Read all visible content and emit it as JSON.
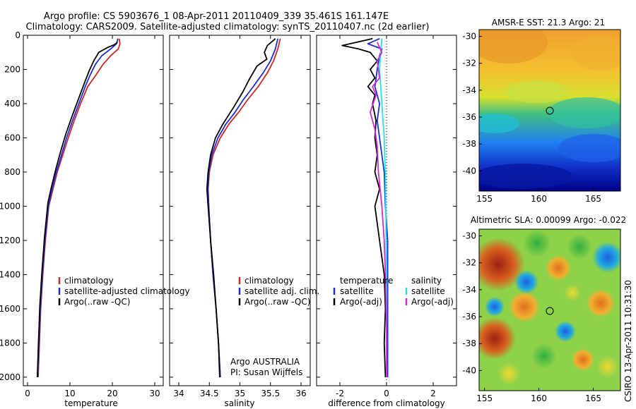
{
  "header": {
    "line1": "Argo profile: CS 5903676_1 08-Apr-2011 20110409_339 35.461S 161.147E",
    "line2": "Climatology: CARS2009. Satellite-adjusted climatology: synTS_20110407.nc (2d earlier)"
  },
  "colors": {
    "climatology": "#dd2222",
    "satellite": "#1a2ee0",
    "argo": "#000000",
    "sat_diff": "#22e6e6",
    "argo_adj": "#dd22dd"
  },
  "credit": "CSIRO 13-Apr-2011 10:31:30",
  "chart_data": [
    {
      "type": "line",
      "xlabel": "temperature",
      "xlim": [
        -1,
        32
      ],
      "ylim": [
        2050,
        0
      ],
      "xticks": [
        0,
        10,
        20,
        30
      ],
      "yticks": [
        0,
        200,
        400,
        600,
        800,
        1000,
        1200,
        1400,
        1600,
        1800,
        2000
      ],
      "legend": [
        "climatology",
        "satellite-adjusted climatology",
        "Argo(..raw -QC)"
      ],
      "series": [
        {
          "name": "climatology",
          "color": "#dd2222",
          "x": [
            21.6,
            21.8,
            21.4,
            19.6,
            17.8,
            16.2,
            14.2,
            12.5,
            11.0,
            9.6,
            8.3,
            7.0,
            6.0,
            5.0,
            4.2,
            3.6,
            3.1,
            2.8,
            2.5
          ],
          "y": [
            20,
            50,
            80,
            120,
            170,
            230,
            300,
            400,
            500,
            600,
            700,
            800,
            900,
            1000,
            1200,
            1400,
            1600,
            1800,
            2000
          ]
        },
        {
          "name": "satellite-adjusted climatology",
          "color": "#1a2ee0",
          "x": [
            21.3,
            21.0,
            19.6,
            17.5,
            16.0,
            14.8,
            13.6,
            12.1,
            10.6,
            9.2,
            8.0,
            6.8,
            5.8,
            4.9,
            4.1,
            3.5,
            3.0,
            2.7,
            2.4
          ],
          "y": [
            20,
            50,
            80,
            120,
            170,
            230,
            300,
            400,
            500,
            600,
            700,
            800,
            900,
            1000,
            1200,
            1400,
            1600,
            1800,
            2000
          ]
        },
        {
          "name": "Argo(..raw -QC)",
          "color": "#000000",
          "x": [
            21.2,
            20.5,
            19.0,
            16.8,
            15.6,
            14.5,
            13.4,
            11.9,
            10.4,
            9.0,
            7.8,
            6.7,
            5.7,
            4.8,
            4.0,
            3.4,
            2.9,
            2.6,
            2.3
          ],
          "y": [
            40,
            55,
            70,
            100,
            150,
            210,
            280,
            380,
            480,
            580,
            680,
            780,
            880,
            980,
            1180,
            1380,
            1580,
            1780,
            2000
          ]
        }
      ]
    },
    {
      "type": "line",
      "xlabel": "salinity",
      "xlim": [
        33.85,
        36.15
      ],
      "ylim": [
        2050,
        0
      ],
      "xticks": [
        34,
        34.5,
        35,
        35.5,
        36
      ],
      "yticks": [
        0,
        200,
        400,
        600,
        800,
        1000,
        1200,
        1400,
        1600,
        1800,
        2000
      ],
      "legend": [
        "climatology",
        "satellite adj. clim.",
        "Argo(..raw -QC)"
      ],
      "annotation": [
        "Argo AUSTRALIA",
        "PI: Susan Wijffels"
      ],
      "series": [
        {
          "name": "climatology",
          "color": "#dd2222",
          "x": [
            35.66,
            35.62,
            35.55,
            35.45,
            35.3,
            35.12,
            34.98,
            34.82,
            34.68,
            34.56,
            34.5,
            34.48,
            34.49,
            34.52,
            34.56,
            34.61,
            34.65,
            34.68
          ],
          "y": [
            20,
            80,
            150,
            220,
            300,
            380,
            450,
            520,
            600,
            700,
            800,
            900,
            1000,
            1200,
            1400,
            1600,
            1800,
            2000
          ]
        },
        {
          "name": "satellite adj. clim.",
          "color": "#1a2ee0",
          "x": [
            35.62,
            35.58,
            35.5,
            35.38,
            35.22,
            35.05,
            34.92,
            34.77,
            34.64,
            34.54,
            34.49,
            34.48,
            34.49,
            34.52,
            34.56,
            34.61,
            34.65,
            34.68
          ],
          "y": [
            20,
            80,
            150,
            220,
            300,
            380,
            450,
            520,
            600,
            700,
            800,
            900,
            1000,
            1200,
            1400,
            1600,
            1800,
            2000
          ]
        },
        {
          "name": "Argo(..raw -QC)",
          "color": "#000000",
          "x": [
            35.58,
            35.45,
            35.4,
            35.44,
            35.28,
            35.15,
            35.05,
            34.9,
            34.72,
            34.6,
            34.52,
            34.48,
            34.46,
            34.48,
            34.52,
            34.57,
            34.61,
            34.65,
            34.67
          ],
          "y": [
            20,
            60,
            100,
            140,
            180,
            260,
            330,
            420,
            520,
            600,
            700,
            800,
            900,
            1000,
            1200,
            1400,
            1600,
            1800,
            2000
          ]
        }
      ]
    },
    {
      "type": "line",
      "xlabel": "difference from climatology",
      "xlim": [
        -3,
        3
      ],
      "ylim": [
        2050,
        0
      ],
      "xticks": [
        -2,
        0,
        2
      ],
      "yticks": [
        0,
        200,
        400,
        600,
        800,
        1000,
        1200,
        1400,
        1600,
        1800,
        2000
      ],
      "zero_line": 0,
      "legend_titles": [
        "temperature",
        "salinity"
      ],
      "legend": [
        "satellite",
        "Argo(-adj)",
        "satellite",
        "Argo(-adj)"
      ],
      "series": [
        {
          "name": "temperature satellite",
          "color": "#1a2ee0",
          "x": [
            -0.3,
            -0.8,
            -0.2,
            -0.3,
            -0.4,
            -0.5,
            -0.3,
            -0.4,
            -0.3,
            -0.2,
            -0.1,
            -0.05,
            0.05,
            0.05,
            0.05,
            0.05,
            0.05
          ],
          "y": [
            20,
            50,
            80,
            120,
            200,
            300,
            400,
            500,
            600,
            700,
            800,
            1000,
            1200,
            1400,
            1600,
            1800,
            2000
          ]
        },
        {
          "name": "temperature Argo(-adj)",
          "color": "#000000",
          "x": [
            -0.6,
            -1.9,
            -1.2,
            -0.7,
            -0.4,
            -0.7,
            -0.5,
            -0.8,
            -0.5,
            -0.6,
            -0.45,
            -0.5,
            -0.4,
            -0.5,
            -0.3,
            -0.5,
            -0.3,
            -0.1,
            -0.05,
            -0.1,
            -0.05
          ],
          "y": [
            20,
            60,
            80,
            100,
            150,
            200,
            250,
            300,
            350,
            400,
            500,
            600,
            700,
            800,
            900,
            1000,
            1200,
            1400,
            1600,
            1800,
            2000
          ]
        },
        {
          "name": "salinity satellite",
          "color": "#22e6e6",
          "x": [
            -0.2,
            -0.25,
            -0.3,
            -0.25,
            -0.2,
            -0.15,
            -0.1,
            -0.08,
            -0.05,
            -0.03,
            -0.02,
            0.0,
            0.0,
            0.0,
            0.0
          ],
          "y": [
            20,
            100,
            200,
            300,
            400,
            500,
            600,
            700,
            800,
            1000,
            1200,
            1400,
            1600,
            1800,
            2000
          ]
        },
        {
          "name": "salinity Argo(-adj)",
          "color": "#dd22dd",
          "x": [
            -0.4,
            -0.2,
            -0.4,
            -0.3,
            -0.6,
            -0.45,
            -0.7,
            -0.5,
            -0.4,
            -0.35,
            -0.2,
            -0.1,
            -0.05,
            0.0,
            0.0
          ],
          "y": [
            40,
            100,
            150,
            250,
            300,
            350,
            450,
            550,
            650,
            800,
            1000,
            1200,
            1400,
            1700,
            2000
          ]
        }
      ]
    },
    {
      "type": "heatmap",
      "title": "AMSR-E SST: 21.3 Argo: 21",
      "xlim": [
        154.5,
        167.5
      ],
      "ylim": [
        -41.5,
        -29.5
      ],
      "xticks": [
        155,
        160,
        165
      ],
      "yticks": [
        -30,
        -32,
        -34,
        -36,
        -38,
        -40
      ],
      "marker": [
        161.147,
        -35.461
      ]
    },
    {
      "type": "heatmap",
      "title": "Altimetric SLA: 0.00099 Argo: -0.022",
      "xlim": [
        154.5,
        167.5
      ],
      "ylim": [
        -41.5,
        -29.5
      ],
      "xticks": [
        155,
        160,
        165
      ],
      "yticks": [
        -30,
        -32,
        -34,
        -36,
        -38,
        -40
      ],
      "marker": [
        161.147,
        -35.461
      ]
    }
  ]
}
